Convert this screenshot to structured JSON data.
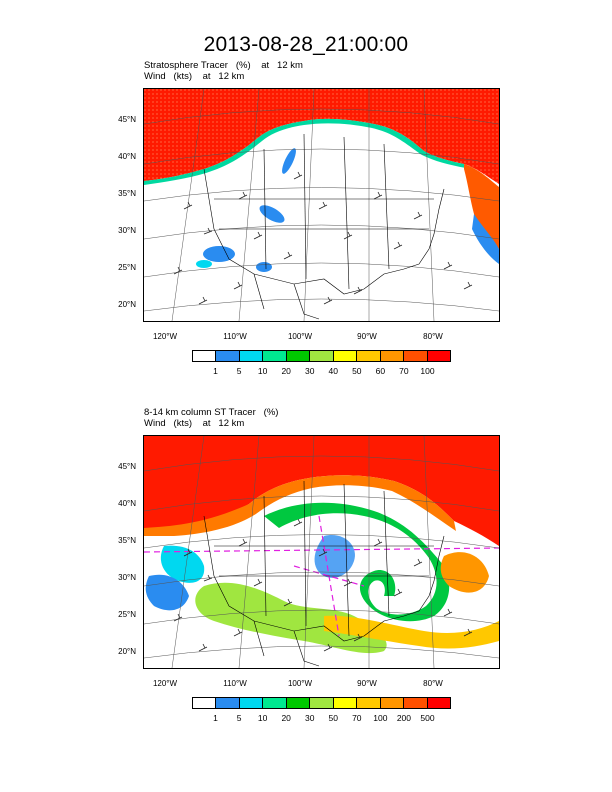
{
  "title": "2013-08-28_21:00:00",
  "panels": [
    {
      "id": "top",
      "subtitle_line1": "Stratosphere Tracer   (%)    at   12 km",
      "subtitle_line2": "Wind   (kts)    at   12 km",
      "lat_labels": [
        "45°N",
        "40°N",
        "35°N",
        "30°N",
        "25°N",
        "20°N"
      ],
      "lon_labels": [
        "120°W",
        "110°W",
        "100°W",
        "90°W",
        "80°W"
      ],
      "colorbar_labels": [
        "1",
        "5",
        "10",
        "20",
        "30",
        "40",
        "50",
        "60",
        "70",
        "100"
      ],
      "colorbar_colors": [
        "#ffffff",
        "#2a8cf0",
        "#00d8f0",
        "#00e890",
        "#00c800",
        "#a0e640",
        "#ffff00",
        "#ffc800",
        "#ff9600",
        "#ff5000",
        "#ff0000"
      ]
    },
    {
      "id": "bottom",
      "subtitle_line1": "8-14 km column ST Tracer   (%)",
      "subtitle_line2": "Wind   (kts)    at   12 km",
      "lat_labels": [
        "45°N",
        "40°N",
        "35°N",
        "30°N",
        "25°N",
        "20°N"
      ],
      "lon_labels": [
        "120°W",
        "110°W",
        "100°W",
        "90°W",
        "80°W"
      ],
      "colorbar_labels": [
        "1",
        "5",
        "10",
        "20",
        "30",
        "50",
        "70",
        "100",
        "200",
        "500"
      ],
      "colorbar_colors": [
        "#ffffff",
        "#2a8cf0",
        "#00d8f0",
        "#00e890",
        "#00c800",
        "#a0e640",
        "#ffff00",
        "#ffc800",
        "#ff9600",
        "#ff5000",
        "#ff0000"
      ]
    }
  ]
}
